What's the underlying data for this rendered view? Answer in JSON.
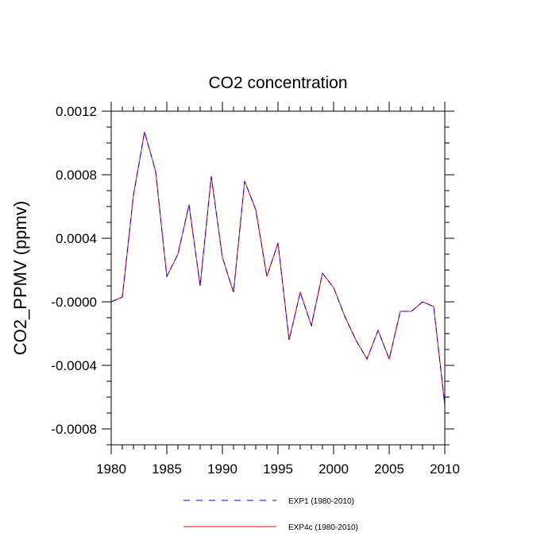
{
  "chart_data": {
    "type": "line",
    "title": "CO2 concentration",
    "xlabel": "",
    "ylabel": "CO2_PPMV  (ppmv)",
    "xlim": [
      1980,
      2010
    ],
    "ylim": [
      -0.0009,
      0.0012
    ],
    "x_ticks": [
      1980,
      1985,
      1990,
      1995,
      2000,
      2005,
      2010
    ],
    "x_tick_labels": [
      "1980",
      "1985",
      "1990",
      "1995",
      "2000",
      "2005",
      "2010"
    ],
    "y_ticks": [
      -0.0008,
      -0.0004,
      0.0,
      0.0004,
      0.0008,
      0.0012
    ],
    "y_tick_labels": [
      "-0.0008",
      "-0.0004",
      "-0.0000",
      "0.0004",
      "0.0008",
      "0.0012"
    ],
    "grid": false,
    "legend_position": "bottom",
    "x": [
      1980,
      1981,
      1982,
      1983,
      1984,
      1985,
      1986,
      1987,
      1988,
      1989,
      1990,
      1991,
      1992,
      1993,
      1994,
      1995,
      1996,
      1997,
      1998,
      1999,
      2000,
      2001,
      2002,
      2003,
      2004,
      2005,
      2006,
      2007,
      2008,
      2009,
      2010
    ],
    "series": [
      {
        "name": "EXP1 (1980-2010)",
        "color": "#0000ff",
        "style": "dashed",
        "values": [
          0.0,
          3e-05,
          0.00067,
          0.00107,
          0.00082,
          0.00016,
          0.0003,
          0.00061,
          0.0001,
          0.00079,
          0.00028,
          6e-05,
          0.00076,
          0.00058,
          0.00016,
          0.00037,
          -0.00024,
          6e-05,
          -0.00015,
          0.00018,
          9e-05,
          -9e-05,
          -0.00024,
          -0.00036,
          -0.00018,
          -0.00036,
          -6e-05,
          -6e-05,
          0.0,
          -3e-05,
          -0.00065
        ]
      },
      {
        "name": "EXP4c (1980-2010)",
        "color": "#ff0000",
        "style": "solid",
        "values": [
          0.0,
          3e-05,
          0.00067,
          0.00107,
          0.00082,
          0.00016,
          0.0003,
          0.00061,
          0.0001,
          0.00079,
          0.00028,
          6e-05,
          0.00076,
          0.00058,
          0.00016,
          0.00037,
          -0.00024,
          6e-05,
          -0.00015,
          0.00018,
          9e-05,
          -9e-05,
          -0.00024,
          -0.00036,
          -0.00018,
          -0.00036,
          -6e-05,
          -6e-05,
          0.0,
          -3e-05,
          -0.00065
        ]
      }
    ]
  }
}
